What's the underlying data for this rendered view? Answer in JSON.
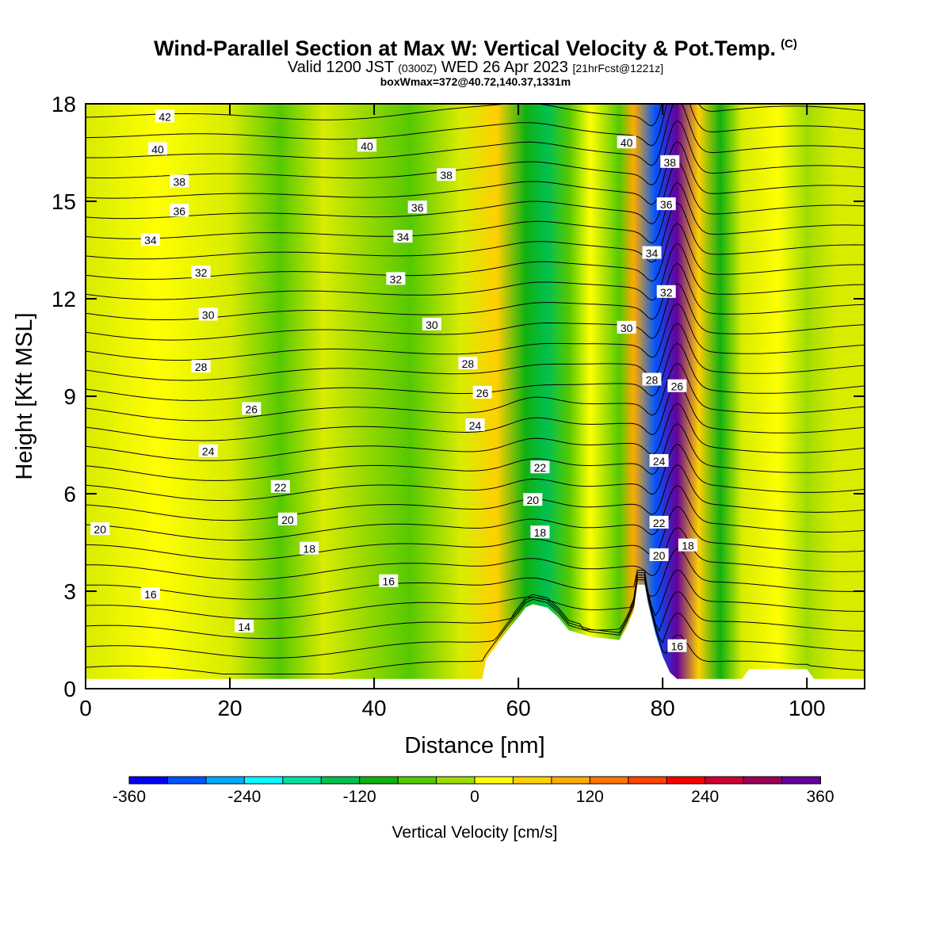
{
  "title": "Wind-Parallel Section at Max W: Vertical Velocity & Pot.Temp.",
  "title_mark": "(C)",
  "subtitle_main": "Valid 1200 JST",
  "subtitle_z": "(0300Z)",
  "subtitle_date": "WED 26 Apr 2023",
  "subtitle_fcst": "[21hrFcst@1221z]",
  "subtitle2": "boxWmax=372@40.72,140.37,1331m",
  "chart_data": {
    "type": "heatmap",
    "xlabel": "Distance [nm]",
    "ylabel": "Height [Kft MSL]",
    "xlim": [
      0,
      108
    ],
    "ylim": [
      0,
      18
    ],
    "x_ticks": [
      "0",
      "20",
      "40",
      "60",
      "80",
      "100"
    ],
    "y_ticks": [
      "0",
      "3",
      "6",
      "9",
      "12",
      "15",
      "18"
    ],
    "colorbar": {
      "label": "Vertical Velocity [cm/s]",
      "ticks": [
        "-360",
        "-240",
        "-120",
        "0",
        "120",
        "240",
        "360"
      ],
      "range": [
        -360,
        360
      ],
      "step": 40,
      "colors": [
        "#0000ff",
        "#0055ff",
        "#00aaff",
        "#00ffff",
        "#00e0a0",
        "#00c050",
        "#10b010",
        "#55c800",
        "#a0dc00",
        "#d8ec00",
        "#ffff00",
        "#ffd000",
        "#ffaa00",
        "#ff7700",
        "#ff4400",
        "#ff0000",
        "#cc0033",
        "#990055",
        "#660099"
      ]
    },
    "w_columns": [
      {
        "x": 0,
        "w": 10
      },
      {
        "x": 10,
        "w": 40
      },
      {
        "x": 20,
        "w": 10
      },
      {
        "x": 27,
        "w": -60
      },
      {
        "x": 33,
        "w": 20
      },
      {
        "x": 38,
        "w": -30
      },
      {
        "x": 45,
        "w": -50
      },
      {
        "x": 52,
        "w": 30
      },
      {
        "x": 57,
        "w": 80
      },
      {
        "x": 61,
        "w": -100
      },
      {
        "x": 64,
        "w": -140
      },
      {
        "x": 67,
        "w": -60
      },
      {
        "x": 70,
        "w": 70
      },
      {
        "x": 74,
        "w": -60
      },
      {
        "x": 76,
        "w": 150
      },
      {
        "x": 79,
        "w": -300
      },
      {
        "x": 82,
        "w": 360
      },
      {
        "x": 85,
        "w": 80
      },
      {
        "x": 88,
        "w": -100
      },
      {
        "x": 91,
        "w": 20
      },
      {
        "x": 96,
        "w": 50
      },
      {
        "x": 100,
        "w": -20
      },
      {
        "x": 104,
        "w": 30
      },
      {
        "x": 108,
        "w": 10
      }
    ],
    "terrain": [
      [
        0,
        0.3
      ],
      [
        55,
        0.3
      ],
      [
        55.5,
        0.9
      ],
      [
        56.5,
        1.2
      ],
      [
        57.5,
        1.5
      ],
      [
        58.5,
        1.8
      ],
      [
        60,
        2.2
      ],
      [
        61,
        2.5
      ],
      [
        62,
        2.6
      ],
      [
        64,
        2.5
      ],
      [
        65.5,
        2.2
      ],
      [
        67,
        1.8
      ],
      [
        70,
        1.6
      ],
      [
        74,
        1.5
      ],
      [
        75,
        1.9
      ],
      [
        76,
        2.4
      ],
      [
        76.5,
        3.2
      ],
      [
        77.5,
        3.2
      ],
      [
        78,
        2.6
      ],
      [
        79,
        1.7
      ],
      [
        80,
        1.0
      ],
      [
        81,
        0.5
      ],
      [
        82,
        0.3
      ],
      [
        91,
        0.3
      ],
      [
        92,
        0.6
      ],
      [
        100,
        0.6
      ],
      [
        101,
        0.3
      ],
      [
        108,
        0.3
      ]
    ],
    "theta_levels": [
      14,
      15,
      16,
      17,
      18,
      19,
      20,
      21,
      22,
      23,
      24,
      25,
      26,
      27,
      28,
      29,
      30,
      31,
      32,
      33,
      34,
      35,
      36,
      37,
      38,
      39,
      40,
      41,
      42
    ],
    "theta_labels": [
      {
        "text": "42",
        "x": 11,
        "y": 17.6
      },
      {
        "text": "40",
        "x": 10,
        "y": 16.6
      },
      {
        "text": "40",
        "x": 39,
        "y": 16.7
      },
      {
        "text": "40",
        "x": 75,
        "y": 16.8
      },
      {
        "text": "38",
        "x": 13,
        "y": 15.6
      },
      {
        "text": "38",
        "x": 50,
        "y": 15.8
      },
      {
        "text": "38",
        "x": 81,
        "y": 16.2
      },
      {
        "text": "36",
        "x": 13,
        "y": 14.7
      },
      {
        "text": "36",
        "x": 46,
        "y": 14.8
      },
      {
        "text": "36",
        "x": 80.5,
        "y": 14.9
      },
      {
        "text": "34",
        "x": 9,
        "y": 13.8
      },
      {
        "text": "34",
        "x": 44,
        "y": 13.9
      },
      {
        "text": "34",
        "x": 78.5,
        "y": 13.4
      },
      {
        "text": "32",
        "x": 16,
        "y": 12.8
      },
      {
        "text": "32",
        "x": 43,
        "y": 12.6
      },
      {
        "text": "32",
        "x": 80.5,
        "y": 12.2
      },
      {
        "text": "30",
        "x": 17,
        "y": 11.5
      },
      {
        "text": "30",
        "x": 48,
        "y": 11.2
      },
      {
        "text": "30",
        "x": 75,
        "y": 11.1
      },
      {
        "text": "28",
        "x": 16,
        "y": 9.9
      },
      {
        "text": "28",
        "x": 53,
        "y": 10.0
      },
      {
        "text": "28",
        "x": 78.5,
        "y": 9.5
      },
      {
        "text": "26",
        "x": 23,
        "y": 8.6
      },
      {
        "text": "26",
        "x": 55,
        "y": 9.1
      },
      {
        "text": "26",
        "x": 82,
        "y": 9.3
      },
      {
        "text": "24",
        "x": 17,
        "y": 7.3
      },
      {
        "text": "24",
        "x": 54,
        "y": 8.1
      },
      {
        "text": "24",
        "x": 79.5,
        "y": 7.0
      },
      {
        "text": "22",
        "x": 27,
        "y": 6.2
      },
      {
        "text": "22",
        "x": 63,
        "y": 6.8
      },
      {
        "text": "22",
        "x": 79.5,
        "y": 5.1
      },
      {
        "text": "20",
        "x": 2,
        "y": 4.9
      },
      {
        "text": "20",
        "x": 28,
        "y": 5.2
      },
      {
        "text": "20",
        "x": 62,
        "y": 5.8
      },
      {
        "text": "20",
        "x": 79.5,
        "y": 4.1
      },
      {
        "text": "18",
        "x": 31,
        "y": 4.3
      },
      {
        "text": "18",
        "x": 63,
        "y": 4.8
      },
      {
        "text": "18",
        "x": 83.5,
        "y": 4.4
      },
      {
        "text": "16",
        "x": 9,
        "y": 2.9
      },
      {
        "text": "16",
        "x": 42,
        "y": 3.3
      },
      {
        "text": "16",
        "x": 82,
        "y": 1.3
      },
      {
        "text": "14",
        "x": 22,
        "y": 1.9
      }
    ]
  }
}
